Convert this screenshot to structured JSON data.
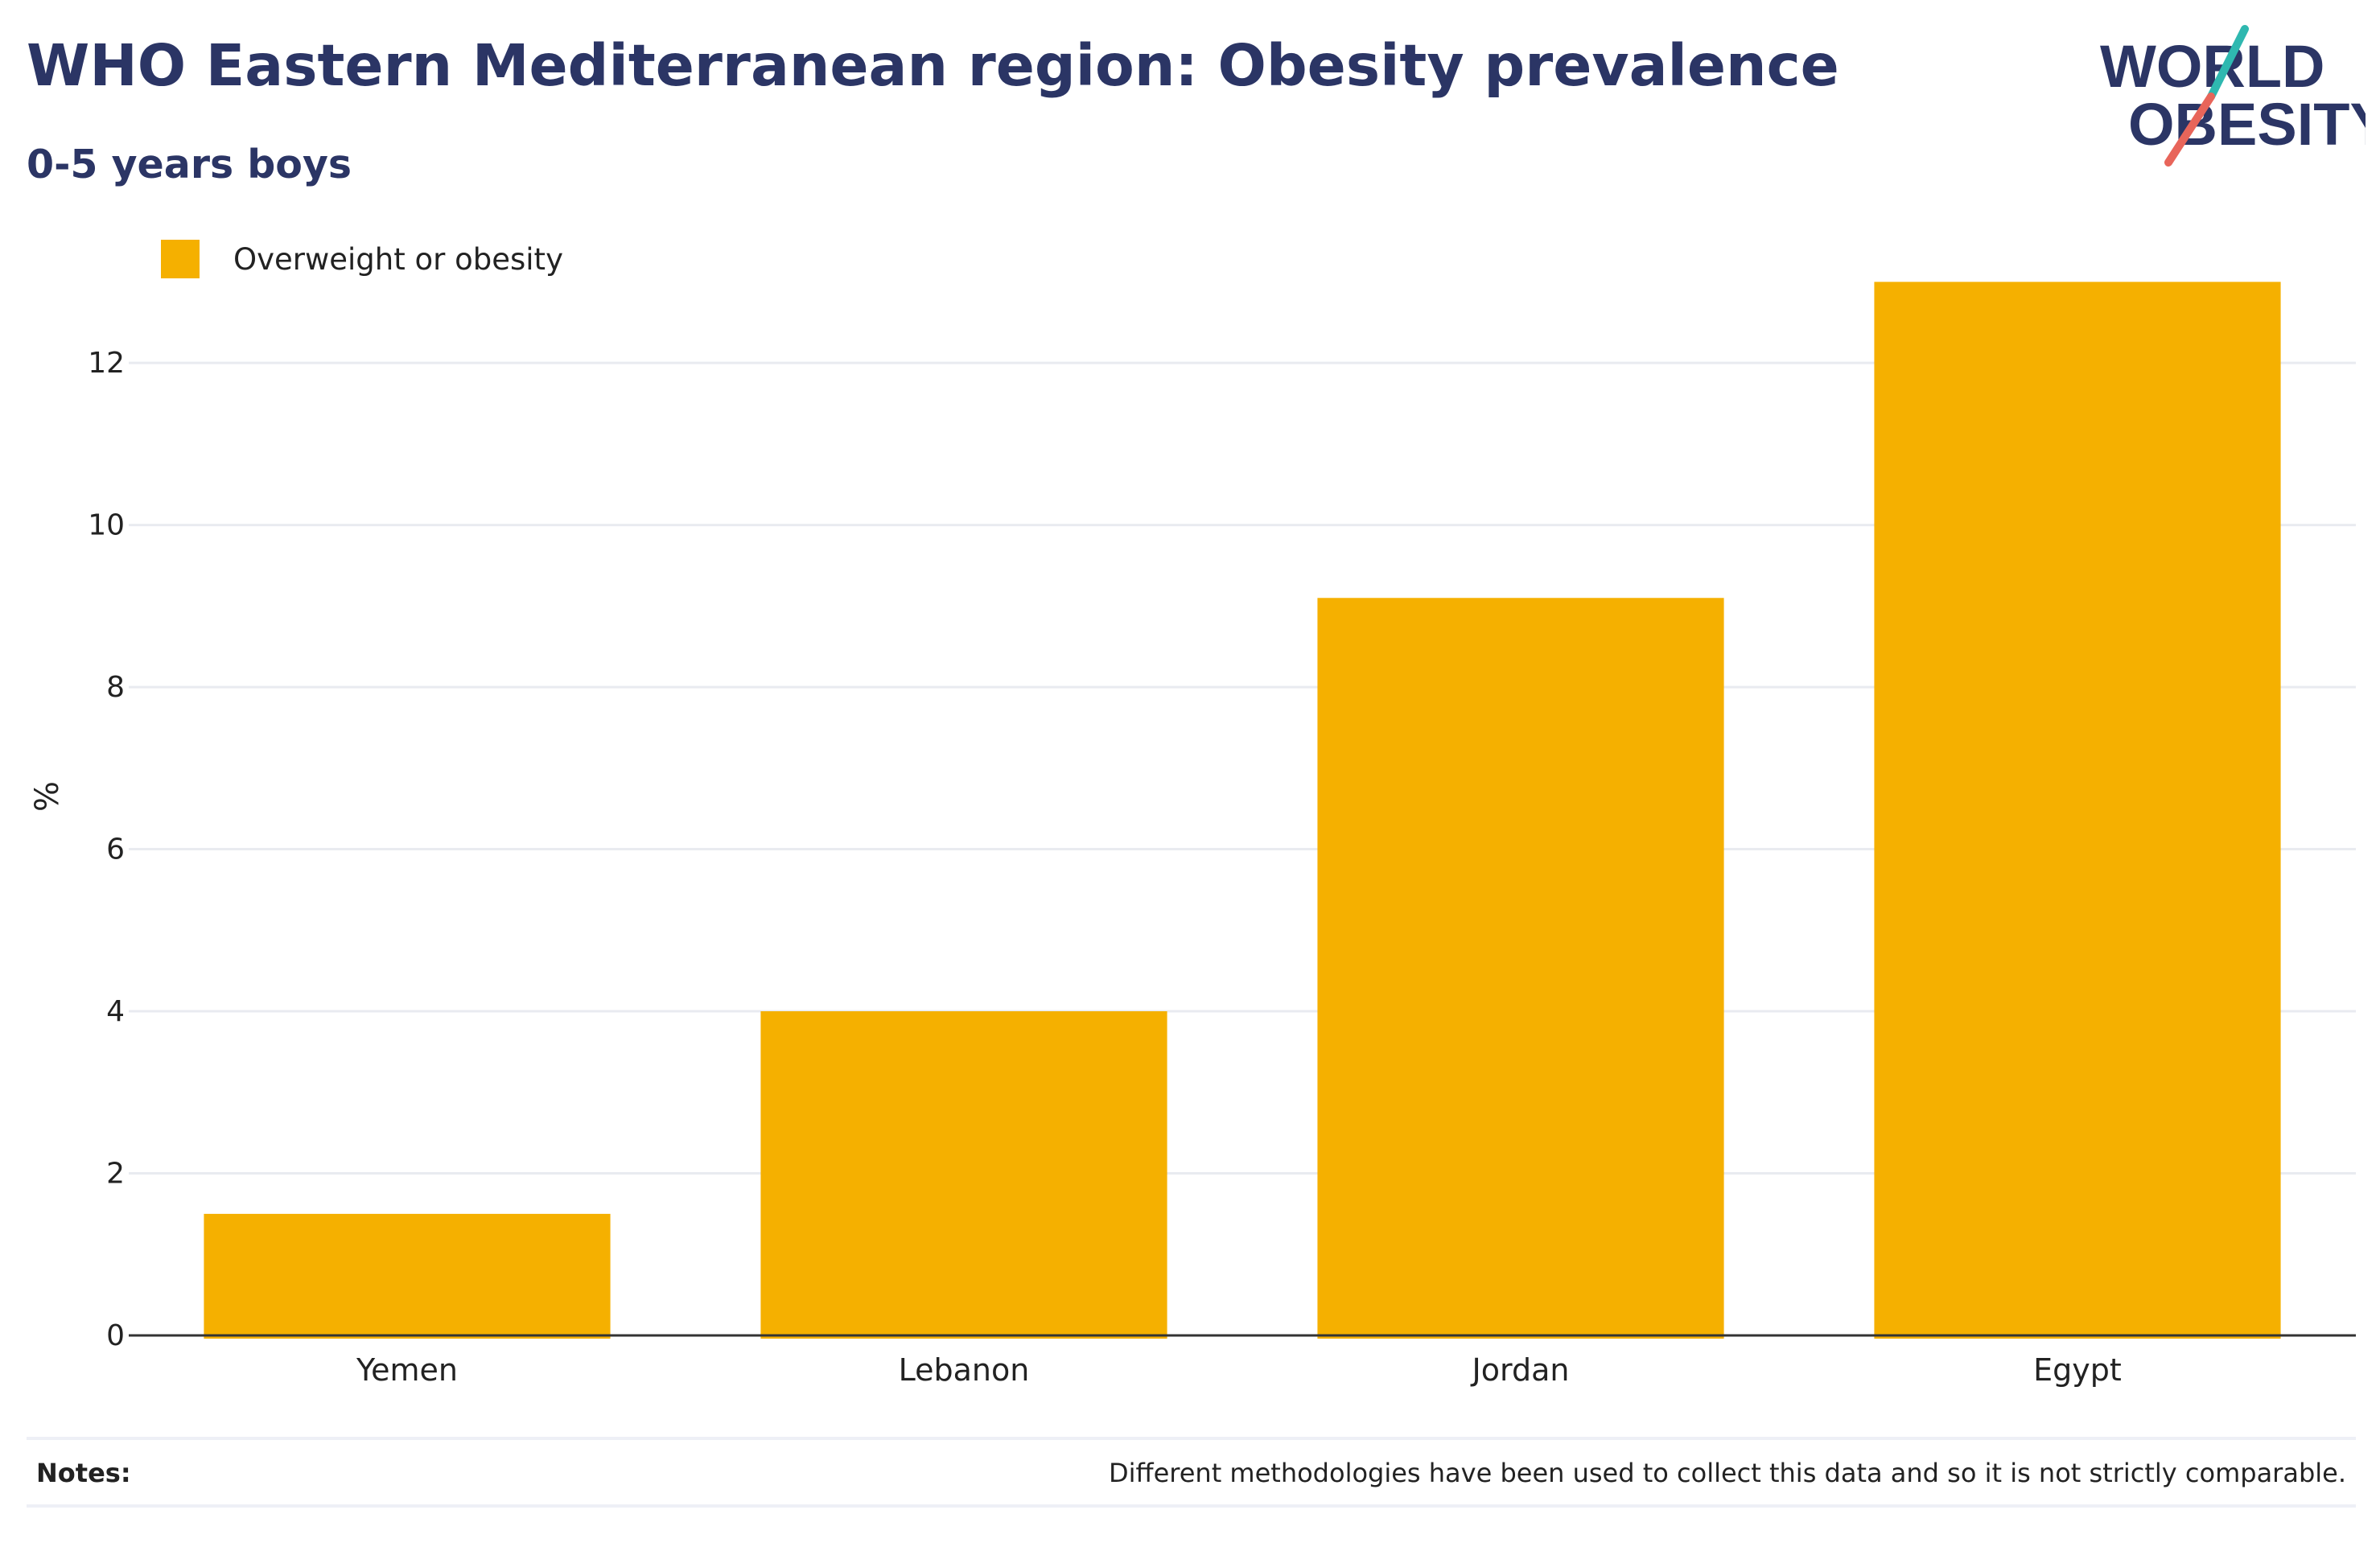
{
  "header": {
    "title": "WHO Eastern Mediterranean region: Obesity prevalence",
    "subtitle": "0-5 years boys"
  },
  "logo": {
    "line1": "WORLD",
    "line2": "OBESITY",
    "text_color": "#2b3565",
    "slash_color_top": "#2fb8b0",
    "slash_color_bottom": "#e8655a"
  },
  "legend": {
    "label": "Overweight or obesity",
    "color": "#f5b000"
  },
  "chart_data": {
    "type": "bar",
    "categories": [
      "Yemen",
      "Lebanon",
      "Jordan",
      "Egypt"
    ],
    "series": [
      {
        "name": "Overweight or obesity",
        "values": [
          1.5,
          4.0,
          9.1,
          13.0
        ]
      }
    ],
    "ylabel": "%",
    "xlabel": "",
    "ylim": [
      0,
      13.5
    ],
    "yticks": [
      0,
      2,
      4,
      6,
      8,
      10,
      12
    ],
    "grid": true,
    "legend_position": "top-left",
    "bar_color": "#f5b000"
  },
  "notes": {
    "label": "Notes:",
    "text": "Different methodologies have been used to collect this data and so it is not strictly comparable."
  }
}
